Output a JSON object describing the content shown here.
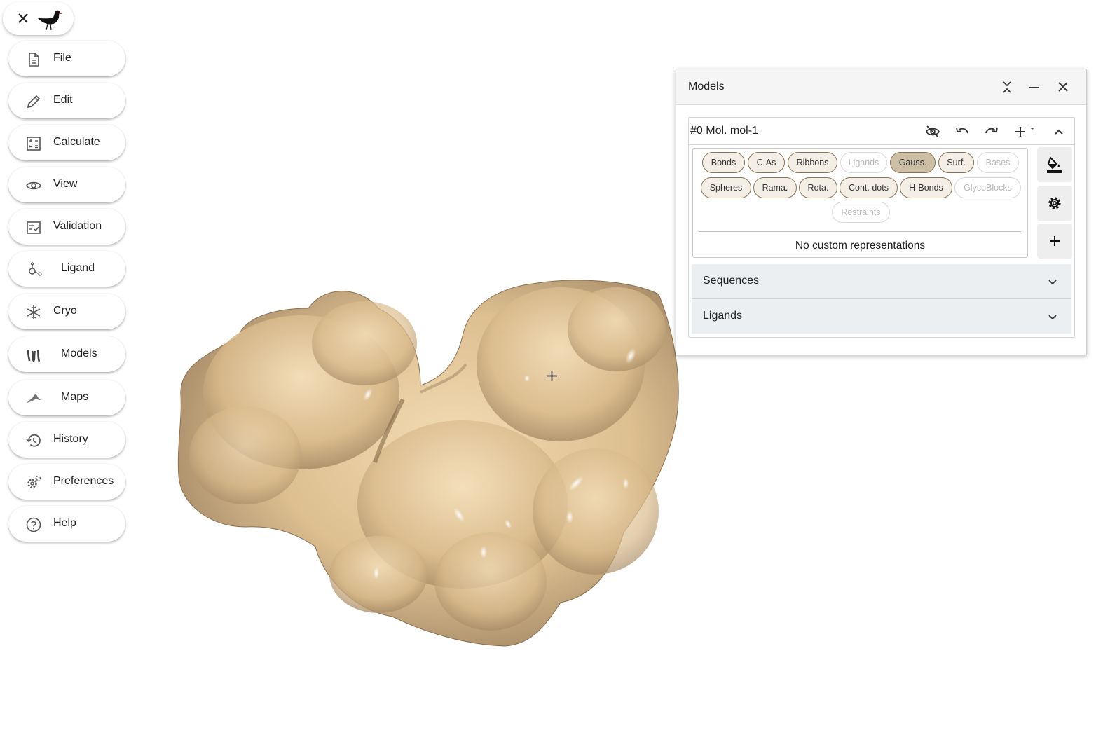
{
  "menu": {
    "items": [
      {
        "label": "File",
        "icon": "file-icon"
      },
      {
        "label": "Edit",
        "icon": "pencil-icon"
      },
      {
        "label": "Calculate",
        "icon": "calculator-icon"
      },
      {
        "label": "View",
        "icon": "eye-icon"
      },
      {
        "label": "Validation",
        "icon": "checklist-icon"
      },
      {
        "label": "Ligand",
        "icon": "ligand-icon"
      },
      {
        "label": "Cryo",
        "icon": "snowflake-icon"
      },
      {
        "label": "Models",
        "icon": "models-icon"
      },
      {
        "label": "Maps",
        "icon": "maps-icon"
      },
      {
        "label": "History",
        "icon": "history-icon"
      },
      {
        "label": "Preferences",
        "icon": "gear-cog-icon"
      },
      {
        "label": "Help",
        "icon": "help-icon"
      }
    ]
  },
  "panel": {
    "title": "Models",
    "molecule": {
      "name": "#0 Mol. mol-1",
      "representations": [
        {
          "label": "Bonds",
          "state": "enabled"
        },
        {
          "label": "C-As",
          "state": "enabled"
        },
        {
          "label": "Ribbons",
          "state": "enabled"
        },
        {
          "label": "Ligands",
          "state": "disabled"
        },
        {
          "label": "Gauss.",
          "state": "active"
        },
        {
          "label": "Surf.",
          "state": "enabled"
        },
        {
          "label": "Bases",
          "state": "disabled"
        },
        {
          "label": "Spheres",
          "state": "enabled"
        },
        {
          "label": "Rama.",
          "state": "enabled"
        },
        {
          "label": "Rota.",
          "state": "enabled"
        },
        {
          "label": "Cont. dots",
          "state": "enabled"
        },
        {
          "label": "H-Bonds",
          "state": "enabled"
        },
        {
          "label": "GlycoBlocks",
          "state": "disabled"
        },
        {
          "label": "Restraints",
          "state": "disabled"
        }
      ],
      "custom_note": "No custom representations",
      "sections": {
        "sequences": "Sequences",
        "ligands": "Ligands"
      }
    }
  },
  "colors": {
    "surface": "#e8c99a",
    "chip_border": "#8b7355",
    "chip_active": "#cdbfa6"
  }
}
